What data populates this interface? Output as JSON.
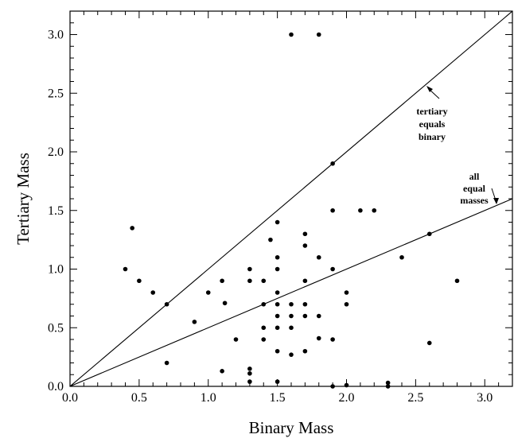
{
  "chart_data": {
    "type": "scatter",
    "xlabel": "Binary Mass",
    "ylabel": "Tertiary Mass",
    "xlim": [
      0.0,
      3.2
    ],
    "ylim": [
      0.0,
      3.2
    ],
    "xticks": [
      "0.0",
      "0.5",
      "1.0",
      "1.5",
      "2.0",
      "2.5",
      "3.0"
    ],
    "yticks": [
      "0.0",
      "0.5",
      "1.0",
      "1.5",
      "2.0",
      "2.5",
      "3.0"
    ],
    "grid": false,
    "lines": [
      {
        "name": "tertiary equals binary",
        "slope": 1.0
      },
      {
        "name": "all equal masses",
        "slope": 0.5
      }
    ],
    "annotations": [
      {
        "lines": [
          "tertiary",
          "equals",
          "binary"
        ]
      },
      {
        "lines": [
          "all",
          "equal",
          "masses"
        ]
      }
    ],
    "points": [
      {
        "x": 0.4,
        "y": 1.0
      },
      {
        "x": 0.45,
        "y": 1.35
      },
      {
        "x": 0.5,
        "y": 0.9
      },
      {
        "x": 0.6,
        "y": 0.8
      },
      {
        "x": 0.7,
        "y": 0.7
      },
      {
        "x": 0.7,
        "y": 0.2
      },
      {
        "x": 0.9,
        "y": 0.55
      },
      {
        "x": 1.0,
        "y": 0.8
      },
      {
        "x": 1.1,
        "y": 0.9
      },
      {
        "x": 1.12,
        "y": 0.71
      },
      {
        "x": 1.1,
        "y": 0.13
      },
      {
        "x": 1.2,
        "y": 0.4
      },
      {
        "x": 1.3,
        "y": 1.0
      },
      {
        "x": 1.3,
        "y": 0.9
      },
      {
        "x": 1.3,
        "y": 0.15
      },
      {
        "x": 1.3,
        "y": 0.11
      },
      {
        "x": 1.3,
        "y": 0.04
      },
      {
        "x": 1.4,
        "y": 0.9
      },
      {
        "x": 1.4,
        "y": 0.7
      },
      {
        "x": 1.4,
        "y": 0.5
      },
      {
        "x": 1.4,
        "y": 0.4
      },
      {
        "x": 1.45,
        "y": 1.25
      },
      {
        "x": 1.5,
        "y": 1.4
      },
      {
        "x": 1.5,
        "y": 1.1
      },
      {
        "x": 1.5,
        "y": 1.0
      },
      {
        "x": 1.5,
        "y": 0.8
      },
      {
        "x": 1.5,
        "y": 0.7
      },
      {
        "x": 1.5,
        "y": 0.6
      },
      {
        "x": 1.5,
        "y": 0.5
      },
      {
        "x": 1.5,
        "y": 0.3
      },
      {
        "x": 1.5,
        "y": 0.04
      },
      {
        "x": 1.6,
        "y": 3.0
      },
      {
        "x": 1.6,
        "y": 0.7
      },
      {
        "x": 1.6,
        "y": 0.6
      },
      {
        "x": 1.6,
        "y": 0.5
      },
      {
        "x": 1.6,
        "y": 0.27
      },
      {
        "x": 1.7,
        "y": 1.3
      },
      {
        "x": 1.7,
        "y": 1.2
      },
      {
        "x": 1.7,
        "y": 0.9
      },
      {
        "x": 1.7,
        "y": 0.7
      },
      {
        "x": 1.7,
        "y": 0.6
      },
      {
        "x": 1.7,
        "y": 0.3
      },
      {
        "x": 1.8,
        "y": 3.0
      },
      {
        "x": 1.8,
        "y": 1.1
      },
      {
        "x": 1.8,
        "y": 0.6
      },
      {
        "x": 1.8,
        "y": 0.41
      },
      {
        "x": 1.9,
        "y": 1.9
      },
      {
        "x": 1.9,
        "y": 1.5
      },
      {
        "x": 1.9,
        "y": 1.0
      },
      {
        "x": 1.9,
        "y": 0.4
      },
      {
        "x": 1.9,
        "y": 0.0
      },
      {
        "x": 2.0,
        "y": 0.8
      },
      {
        "x": 2.0,
        "y": 0.7
      },
      {
        "x": 2.0,
        "y": 0.01
      },
      {
        "x": 2.1,
        "y": 1.5
      },
      {
        "x": 2.2,
        "y": 1.5
      },
      {
        "x": 2.3,
        "y": 0.03
      },
      {
        "x": 2.3,
        "y": 0.0
      },
      {
        "x": 2.4,
        "y": 1.1
      },
      {
        "x": 2.6,
        "y": 1.3
      },
      {
        "x": 2.6,
        "y": 0.37
      },
      {
        "x": 2.8,
        "y": 0.9
      }
    ]
  }
}
